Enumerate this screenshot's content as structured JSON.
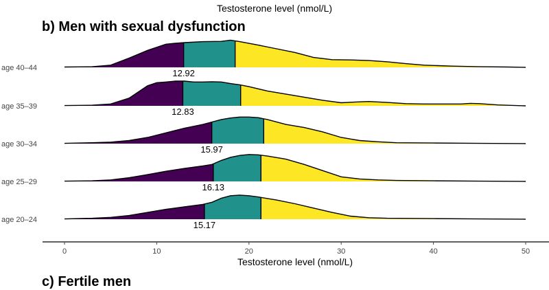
{
  "header": {
    "top_axis_title": "Testosterone level (nmol/L)",
    "panel_b_title": "b) Men with sexual dysfunction",
    "panel_c_title": "c) Fertile men"
  },
  "chart_data": {
    "type": "ridgeline",
    "xlabel": "Testosterone level (nmol/L)",
    "xlim": [
      0,
      50
    ],
    "xticks": [
      0,
      10,
      20,
      30,
      40,
      50
    ],
    "colors": {
      "low": "#440154",
      "mid": "#21918c",
      "high": "#fde725",
      "outline": "#000000"
    },
    "ridges": [
      {
        "label": "age 40–44",
        "median": 12.92,
        "median_label": "12.92",
        "q_hi": 18.5,
        "density": [
          [
            0,
            0.01
          ],
          [
            3,
            0.02
          ],
          [
            5,
            0.07
          ],
          [
            7,
            0.3
          ],
          [
            9,
            0.55
          ],
          [
            10,
            0.65
          ],
          [
            11,
            0.75
          ],
          [
            12,
            0.78
          ],
          [
            13,
            0.8
          ],
          [
            15,
            0.83
          ],
          [
            17,
            0.84
          ],
          [
            18,
            0.88
          ],
          [
            19,
            0.83
          ],
          [
            21,
            0.72
          ],
          [
            23,
            0.6
          ],
          [
            25,
            0.48
          ],
          [
            27,
            0.32
          ],
          [
            29,
            0.25
          ],
          [
            31,
            0.24
          ],
          [
            33,
            0.22
          ],
          [
            35,
            0.18
          ],
          [
            37,
            0.12
          ],
          [
            39,
            0.07
          ],
          [
            42,
            0.04
          ],
          [
            45,
            0.02
          ],
          [
            48,
            0.01
          ],
          [
            50,
            0.0
          ]
        ]
      },
      {
        "label": "age 35–39",
        "median": 12.83,
        "median_label": "12.83",
        "q_hi": 19.1,
        "density": [
          [
            0,
            0.01
          ],
          [
            3,
            0.02
          ],
          [
            5,
            0.06
          ],
          [
            7,
            0.25
          ],
          [
            8,
            0.45
          ],
          [
            9,
            0.65
          ],
          [
            10,
            0.75
          ],
          [
            11,
            0.77
          ],
          [
            12,
            0.8
          ],
          [
            13,
            0.8
          ],
          [
            14,
            0.77
          ],
          [
            15,
            0.77
          ],
          [
            16,
            0.78
          ],
          [
            17,
            0.77
          ],
          [
            18,
            0.72
          ],
          [
            19,
            0.68
          ],
          [
            20,
            0.62
          ],
          [
            22,
            0.48
          ],
          [
            24,
            0.38
          ],
          [
            26,
            0.28
          ],
          [
            28,
            0.18
          ],
          [
            30,
            0.1
          ],
          [
            32,
            0.13
          ],
          [
            33,
            0.14
          ],
          [
            35,
            0.11
          ],
          [
            37,
            0.07
          ],
          [
            39,
            0.06
          ],
          [
            41,
            0.06
          ],
          [
            43,
            0.06
          ],
          [
            44,
            0.08
          ],
          [
            45,
            0.07
          ],
          [
            47,
            0.03
          ],
          [
            50,
            0.0
          ]
        ]
      },
      {
        "label": "age 30–34",
        "median": 15.97,
        "median_label": "15.97",
        "q_hi": 21.6,
        "density": [
          [
            0,
            0.01
          ],
          [
            3,
            0.03
          ],
          [
            5,
            0.05
          ],
          [
            7,
            0.1
          ],
          [
            9,
            0.2
          ],
          [
            11,
            0.35
          ],
          [
            13,
            0.5
          ],
          [
            15,
            0.62
          ],
          [
            16,
            0.7
          ],
          [
            17,
            0.78
          ],
          [
            18,
            0.83
          ],
          [
            19,
            0.86
          ],
          [
            20,
            0.86
          ],
          [
            21,
            0.84
          ],
          [
            22,
            0.78
          ],
          [
            24,
            0.62
          ],
          [
            26,
            0.52
          ],
          [
            28,
            0.38
          ],
          [
            30,
            0.2
          ],
          [
            32,
            0.1
          ],
          [
            34,
            0.06
          ],
          [
            36,
            0.03
          ],
          [
            40,
            0.02
          ],
          [
            45,
            0.01
          ],
          [
            50,
            0.0
          ]
        ]
      },
      {
        "label": "age 25–29",
        "median": 16.13,
        "median_label": "16.13",
        "q_hi": 21.3,
        "density": [
          [
            0,
            0.01
          ],
          [
            3,
            0.02
          ],
          [
            5,
            0.05
          ],
          [
            7,
            0.12
          ],
          [
            9,
            0.22
          ],
          [
            11,
            0.33
          ],
          [
            13,
            0.42
          ],
          [
            15,
            0.5
          ],
          [
            16,
            0.55
          ],
          [
            17,
            0.68
          ],
          [
            18,
            0.78
          ],
          [
            19,
            0.84
          ],
          [
            20,
            0.87
          ],
          [
            21,
            0.86
          ],
          [
            22,
            0.82
          ],
          [
            24,
            0.72
          ],
          [
            26,
            0.55
          ],
          [
            28,
            0.35
          ],
          [
            30,
            0.15
          ],
          [
            32,
            0.08
          ],
          [
            34,
            0.05
          ],
          [
            36,
            0.03
          ],
          [
            40,
            0.02
          ],
          [
            45,
            0.01
          ],
          [
            50,
            0.0
          ]
        ]
      },
      {
        "label": "age 20–24",
        "median": 15.17,
        "median_label": "15.17",
        "q_hi": 21.3,
        "density": [
          [
            0,
            0.01
          ],
          [
            3,
            0.03
          ],
          [
            5,
            0.06
          ],
          [
            7,
            0.12
          ],
          [
            9,
            0.22
          ],
          [
            11,
            0.32
          ],
          [
            13,
            0.4
          ],
          [
            15,
            0.48
          ],
          [
            16,
            0.55
          ],
          [
            17,
            0.68
          ],
          [
            18,
            0.76
          ],
          [
            19,
            0.78
          ],
          [
            20,
            0.76
          ],
          [
            21,
            0.72
          ],
          [
            23,
            0.62
          ],
          [
            25,
            0.5
          ],
          [
            27,
            0.36
          ],
          [
            29,
            0.22
          ],
          [
            31,
            0.1
          ],
          [
            33,
            0.05
          ],
          [
            35,
            0.03
          ],
          [
            40,
            0.02
          ],
          [
            45,
            0.01
          ],
          [
            50,
            0.0
          ]
        ]
      }
    ]
  }
}
